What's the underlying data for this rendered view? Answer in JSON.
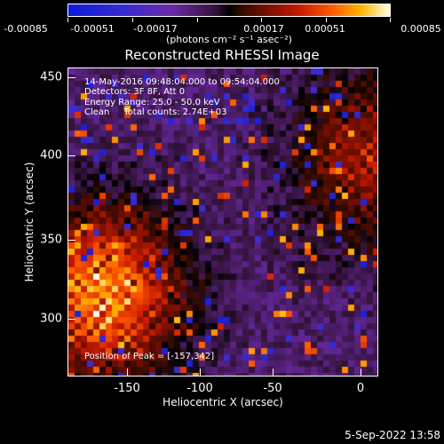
{
  "colorbar": {
    "ticks": [
      "-0.00085",
      "-0.00051",
      "-0.00017",
      "0.00017",
      "0.00051",
      "0.00085"
    ],
    "units": "(photons cm⁻² s⁻¹ asec⁻²)"
  },
  "title": "Reconstructed RHESSI Image",
  "annotations": {
    "time_range": "14-May-2016 09:48:04.000 to 09:54:04.000",
    "detectors": "Detectors: 3F 8F, Att 0",
    "energy": "Energy Range: 25.0 - 50.0 keV",
    "clean": "Clean     Total counts: 2.74E+03",
    "peak": "Position of Peak = [-157,342]"
  },
  "x_axis": {
    "title": "Heliocentric X (arcsec)",
    "ticks": [
      "-150",
      "-100",
      "-50",
      "0"
    ]
  },
  "y_axis": {
    "title": "Heliocentric Y (arcsec)",
    "ticks": [
      "450",
      "400",
      "350",
      "300"
    ]
  },
  "timestamp": "5-Sep-2022 13:58",
  "colors": {
    "background": "#000000",
    "foreground": "#ffffff"
  }
}
